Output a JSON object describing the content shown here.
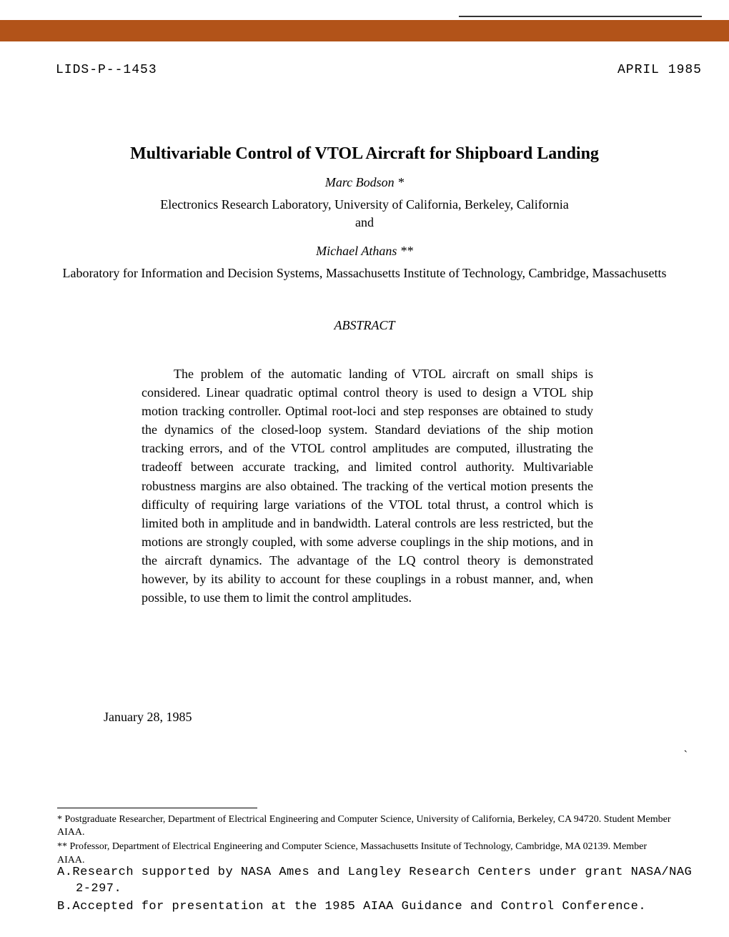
{
  "header": {
    "doc_id": "LIDS-P--1453",
    "date": "APRIL 1985",
    "bar_color": "#b25319"
  },
  "title": "Multivariable Control of VTOL Aircraft for Shipboard Landing",
  "authors": [
    {
      "name": "Marc Bodson *",
      "affiliation": "Electronics Research Laboratory, University of California, Berkeley, California",
      "joiner": "and"
    },
    {
      "name": "Michael Athans **",
      "affiliation": "Laboratory for Information and Decision Systems, Massachusetts Institute of Technology, Cambridge, Massachusetts"
    }
  ],
  "abstract": {
    "heading": "ABSTRACT",
    "body": "The problem of the automatic landing of VTOL aircraft on small ships is considered. Linear quadratic optimal control theory is used to design a VTOL ship motion tracking controller. Optimal root-loci and step responses are obtained to study the dynamics of the closed-loop system. Standard deviations of the ship motion tracking errors, and of the VTOL control amplitudes are computed, illustrating the tradeoff between accurate tracking, and limited control authority. Multivariable robustness margins are also obtained. The tracking of the vertical motion presents the difficulty of requiring large variations of the VTOL total thrust, a control which is limited both in amplitude and in bandwidth. Lateral controls are less restricted, but the motions are strongly coupled, with some adverse couplings in the ship motions, and in the aircraft dynamics. The advantage of the LQ control theory is demonstrated however, by its ability to account for these couplings in a robust manner, and, when possible, to use them to limit the control amplitudes."
  },
  "submission_date": "January 28, 1985",
  "footnotes": [
    "* Postgraduate Researcher, Department of Electrical Engineering and Computer Science, University of California, Berkeley, CA 94720. Student Member AIAA.",
    "** Professor, Department of Electrical Engineering and Computer Science, Massachusetts Insitute of Technology, Cambridge, MA 02139. Member AIAA."
  ],
  "notes": [
    {
      "label": "A.",
      "text": "Research supported by NASA Ames and Langley Research Centers under grant NASA/NAG 2-297."
    },
    {
      "label": "B.",
      "text": "Accepted for presentation at the 1985 AIAA Guidance and Control Conference."
    }
  ],
  "colors": {
    "background": "#ffffff",
    "text": "#000000",
    "bar": "#b25319"
  },
  "typography": {
    "body_font": "Times New Roman",
    "mono_font": "Courier New",
    "title_fontsize_pt": 18,
    "body_fontsize_pt": 13,
    "footnote_fontsize_pt": 10
  }
}
